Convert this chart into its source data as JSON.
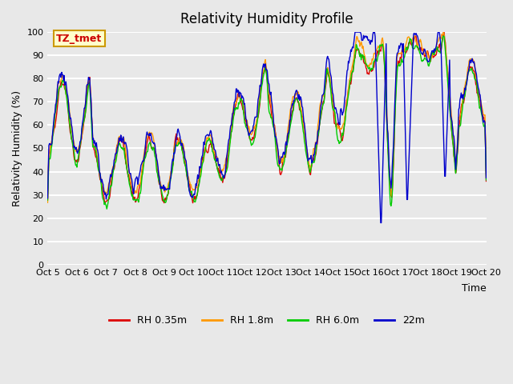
{
  "title": "Relativity Humidity Profile",
  "xlabel": "Time",
  "ylabel": "Relativity Humidity (%)",
  "ylim": [
    0,
    100
  ],
  "yticks": [
    0,
    10,
    20,
    30,
    40,
    50,
    60,
    70,
    80,
    90,
    100
  ],
  "annotation_text": "TZ_tmet",
  "annotation_box_color": "#ffffcc",
  "annotation_box_edge": "#cc9900",
  "annotation_text_color": "#cc0000",
  "bg_color": "#e8e8e8",
  "plot_bg_color": "#e8e8e8",
  "grid_color": "white",
  "colors": {
    "rh035": "#dd0000",
    "rh18": "#ff9900",
    "rh60": "#00cc00",
    "rh22": "#0000cc"
  },
  "legend_labels": [
    "RH 0.35m",
    "RH 1.8m",
    "RH 6.0m",
    "22m"
  ],
  "x_tick_labels": [
    "Oct 5",
    "Oct 6",
    "Oct 7",
    "Oct 8",
    "Oct 9",
    "Oct 10",
    "Oct 11",
    "Oct 12",
    "Oct 13",
    "Oct 14",
    "Oct 15",
    "Oct 16",
    "Oct 17",
    "Oct 18",
    "Oct 19",
    "Oct 20"
  ],
  "n_days": 15,
  "points_per_day": 48
}
